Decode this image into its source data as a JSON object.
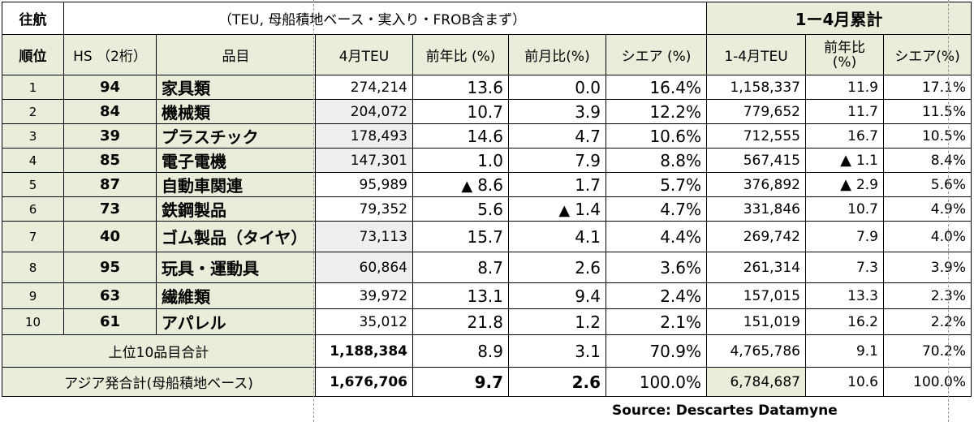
{
  "corner_label": "往航",
  "note": "（TEU, 母船積地ベース・実入り・FROB含まず）",
  "cumulative_title": "1ー4月累計",
  "headers": {
    "rank": "順位",
    "hs": "HS （2桁）",
    "item": "品目",
    "april_teu": "4月TEU",
    "yoy": "前年比 (%)",
    "mom": "前月比(%)",
    "share": "シエア (%)",
    "cum_teu": "1-4月TEU",
    "cum_yoy_line1": "前年比",
    "cum_yoy_line2": "(%)",
    "cum_share": "シエア(%)"
  },
  "rows": [
    {
      "rank": "1",
      "hs": "94",
      "item": "家具類",
      "teu": "274,214",
      "yoy": "13.6",
      "yoy_neg": false,
      "mom": "0.0",
      "mom_neg": false,
      "share": "16.4%",
      "cum_teu": "1,158,337",
      "cum_yoy": "11.9",
      "cum_yoy_neg": false,
      "cum_share": "17.1%"
    },
    {
      "rank": "2",
      "hs": "84",
      "item": "機械類",
      "teu": "204,072",
      "yoy": "10.7",
      "yoy_neg": false,
      "mom": "3.9",
      "mom_neg": false,
      "share": "12.2%",
      "cum_teu": "779,652",
      "cum_yoy": "11.7",
      "cum_yoy_neg": false,
      "cum_share": "11.5%"
    },
    {
      "rank": "3",
      "hs": "39",
      "item": "プラスチック",
      "teu": "178,493",
      "yoy": "14.6",
      "yoy_neg": false,
      "mom": "4.7",
      "mom_neg": false,
      "share": "10.6%",
      "cum_teu": "712,555",
      "cum_yoy": "16.7",
      "cum_yoy_neg": false,
      "cum_share": "10.5%"
    },
    {
      "rank": "4",
      "hs": "85",
      "item": "電子電機",
      "teu": "147,301",
      "yoy": "1.0",
      "yoy_neg": false,
      "mom": "7.9",
      "mom_neg": false,
      "share": "8.8%",
      "cum_teu": "567,415",
      "cum_yoy": "1.1",
      "cum_yoy_neg": true,
      "cum_share": "8.4%"
    },
    {
      "rank": "5",
      "hs": "87",
      "item": "自動車関連",
      "teu": "95,989",
      "yoy": "8.6",
      "yoy_neg": true,
      "mom": "1.7",
      "mom_neg": false,
      "share": "5.7%",
      "cum_teu": "376,892",
      "cum_yoy": "2.9",
      "cum_yoy_neg": true,
      "cum_share": "5.6%"
    },
    {
      "rank": "6",
      "hs": "73",
      "item": "鉄鋼製品",
      "teu": "79,352",
      "yoy": "5.6",
      "yoy_neg": false,
      "mom": "1.4",
      "mom_neg": true,
      "share": "4.7%",
      "cum_teu": "331,846",
      "cum_yoy": "10.7",
      "cum_yoy_neg": false,
      "cum_share": "4.9%"
    },
    {
      "rank": "7",
      "hs": "40",
      "item": "ゴム製品（タイヤ）",
      "teu": "73,113",
      "yoy": "15.7",
      "yoy_neg": false,
      "mom": "4.1",
      "mom_neg": false,
      "share": "4.4%",
      "cum_teu": "269,742",
      "cum_yoy": "7.9",
      "cum_yoy_neg": false,
      "cum_share": "4.0%"
    },
    {
      "rank": "8",
      "hs": "95",
      "item": "玩具・運動具",
      "teu": "60,864",
      "yoy": "8.7",
      "yoy_neg": false,
      "mom": "2.6",
      "mom_neg": false,
      "share": "3.6%",
      "cum_teu": "261,314",
      "cum_yoy": "7.3",
      "cum_yoy_neg": false,
      "cum_share": "3.9%"
    },
    {
      "rank": "9",
      "hs": "63",
      "item": "繊維類",
      "teu": "39,972",
      "yoy": "13.1",
      "yoy_neg": false,
      "mom": "9.4",
      "mom_neg": false,
      "share": "2.4%",
      "cum_teu": "157,015",
      "cum_yoy": "13.3",
      "cum_yoy_neg": false,
      "cum_share": "2.3%"
    },
    {
      "rank": "10",
      "hs": "61",
      "item": "アパレル",
      "teu": "35,012",
      "yoy": "21.8",
      "yoy_neg": false,
      "mom": "1.2",
      "mom_neg": false,
      "share": "2.1%",
      "cum_teu": "151,019",
      "cum_yoy": "16.2",
      "cum_yoy_neg": false,
      "cum_share": "2.2%"
    }
  ],
  "totals": [
    {
      "label": "上位10品目合計",
      "teu": "1,188,384",
      "yoy": "8.9",
      "mom": "3.1",
      "share": "70.9%",
      "cum_teu": "4,765,786",
      "cum_yoy": "9.1",
      "cum_share": "70.2%"
    },
    {
      "label": "アジア発合計(母船積地ベース)",
      "teu": "1,676,706",
      "yoy": "9.7",
      "mom": "2.6",
      "share": "100.0%",
      "cum_teu": "6,784,687",
      "cum_yoy": "10.6",
      "cum_share": "100.0%"
    }
  ],
  "triangle_glyph": "▲",
  "source": "Source: Descartes Datamyne",
  "colors": {
    "header_green": "#e8eed9",
    "cell_gray": "#efefef",
    "border": "#000000"
  }
}
